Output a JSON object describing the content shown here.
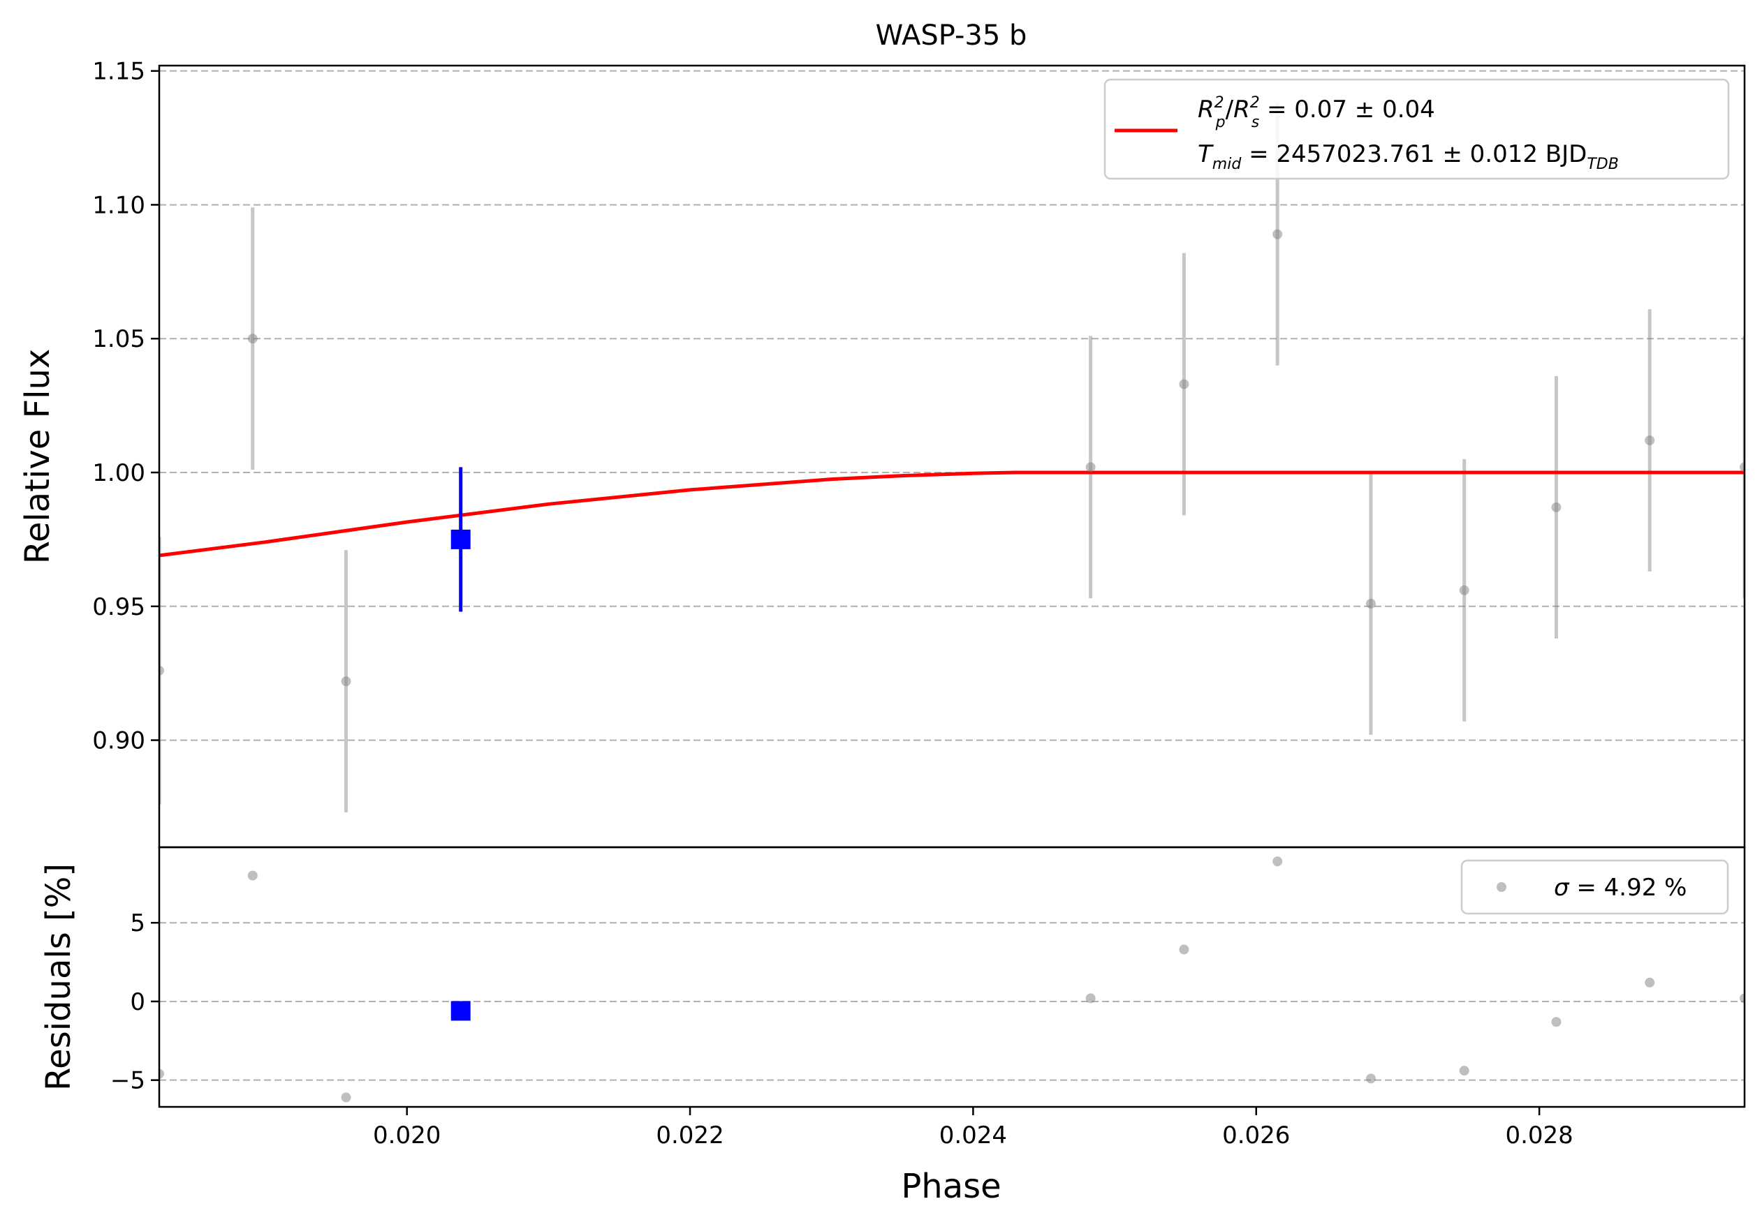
{
  "chart_data": [
    {
      "panel": "main",
      "type": "scatter",
      "title": "WASP-35 b",
      "xlabel": "",
      "ylabel": "Relative Flux",
      "xlim": [
        0.01825,
        0.02945
      ],
      "ylim": [
        0.86,
        1.152
      ],
      "xticks": [],
      "yticks": [
        0.9,
        0.95,
        1.0,
        1.05,
        1.1,
        1.15
      ],
      "ytick_labels": [
        "0.90",
        "0.95",
        "1.00",
        "1.05",
        "1.10",
        "1.15"
      ],
      "grid": true,
      "grid_axis": "y",
      "grid_style": "dashed",
      "series": [
        {
          "kind": "errorbar-points",
          "color": "#808080",
          "points": [
            {
              "x": 0.01825,
              "y": 0.926,
              "err": 0.05
            },
            {
              "x": 0.01891,
              "y": 1.05,
              "err": 0.049
            },
            {
              "x": 0.01957,
              "y": 0.922,
              "err": 0.049
            },
            {
              "x": 0.02483,
              "y": 1.002,
              "err": 0.049
            },
            {
              "x": 0.02549,
              "y": 1.033,
              "err": 0.049
            },
            {
              "x": 0.02615,
              "y": 1.089,
              "err": 0.049
            },
            {
              "x": 0.02681,
              "y": 0.951,
              "err": 0.049
            },
            {
              "x": 0.02747,
              "y": 0.956,
              "err": 0.049
            },
            {
              "x": 0.02812,
              "y": 0.987,
              "err": 0.049
            },
            {
              "x": 0.02878,
              "y": 1.012,
              "err": 0.049
            },
            {
              "x": 0.02945,
              "y": 1.002,
              "err": 0.049
            }
          ]
        },
        {
          "kind": "binned-point",
          "color": "#0000ff",
          "points": [
            {
              "x": 0.02038,
              "y": 0.975,
              "err": 0.027
            }
          ]
        },
        {
          "kind": "model-line",
          "color": "#ff0000",
          "x": [
            0.01825,
            0.019,
            0.02,
            0.021,
            0.022,
            0.023,
            0.0235,
            0.024,
            0.0243,
            0.025,
            0.026,
            0.027,
            0.028,
            0.029,
            0.02945
          ],
          "y": [
            0.969,
            0.974,
            0.9815,
            0.9882,
            0.9935,
            0.9975,
            0.9988,
            0.9997,
            1.0,
            1.0,
            1.0,
            1.0,
            1.0,
            1.0,
            1.0
          ]
        }
      ],
      "legend": {
        "placement": "upper-right",
        "line1": {
          "base1": "R",
          "sub1": "p",
          "sup1": "2",
          "slash": "/",
          "base2": "R",
          "sub2": "s",
          "sup2": "2",
          "rest": " = 0.07 ± 0.04"
        },
        "line2": {
          "base": "T",
          "sub": "mid",
          "rest": " = 2457023.761 ± 0.012 BJD",
          "unit_sub": "TDB"
        }
      }
    },
    {
      "panel": "residuals",
      "type": "scatter",
      "title": "",
      "xlabel": "Phase",
      "ylabel": "Residuals [%]",
      "xlim": [
        0.01825,
        0.02945
      ],
      "ylim": [
        -6.7,
        9.8
      ],
      "xticks": [
        0.02,
        0.022,
        0.024,
        0.026,
        0.028
      ],
      "xtick_labels": [
        "0.020",
        "0.022",
        "0.024",
        "0.026",
        "0.028"
      ],
      "yticks": [
        -5,
        0,
        5
      ],
      "ytick_labels": [
        "−5",
        "0",
        "5"
      ],
      "grid": true,
      "grid_axis": "y",
      "grid_style": "dashed",
      "series": [
        {
          "kind": "points",
          "color": "#808080",
          "points": [
            {
              "x": 0.01825,
              "y": -4.6
            },
            {
              "x": 0.01891,
              "y": 8.0
            },
            {
              "x": 0.01957,
              "y": -6.1
            },
            {
              "x": 0.02483,
              "y": 0.2
            },
            {
              "x": 0.02549,
              "y": 3.3
            },
            {
              "x": 0.02615,
              "y": 8.9
            },
            {
              "x": 0.02681,
              "y": -4.9
            },
            {
              "x": 0.02747,
              "y": -4.4
            },
            {
              "x": 0.02812,
              "y": -1.3
            },
            {
              "x": 0.02878,
              "y": 1.2
            },
            {
              "x": 0.02945,
              "y": 0.2
            }
          ]
        },
        {
          "kind": "binned-point",
          "color": "#0000ff",
          "points": [
            {
              "x": 0.02038,
              "y": -0.6
            }
          ]
        }
      ],
      "legend": {
        "placement": "upper-right",
        "sigma_symbol": "σ",
        "text": " = 4.92 %"
      }
    }
  ]
}
